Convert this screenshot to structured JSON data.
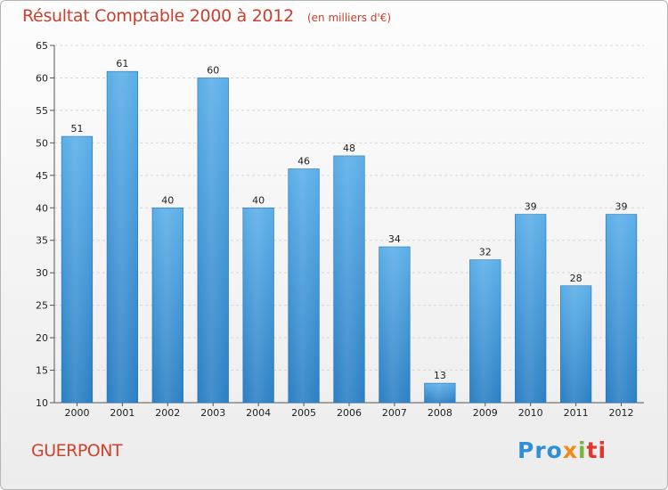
{
  "header": {
    "title": "Résultat Comptable 2000 à 2012",
    "subtitle": "(en milliers d'€)"
  },
  "footer": {
    "town": "GUERPONT",
    "logo_parts": [
      "Pro",
      "x",
      "i",
      "ti"
    ]
  },
  "colors": {
    "accent": "#c8402f",
    "bar_top": "#5aaee8",
    "bar_bottom": "#2a7fc4"
  },
  "chart_data": {
    "type": "bar",
    "title": "Résultat Comptable 2000 à 2012",
    "xlabel": "",
    "ylabel": "",
    "ylim": [
      10,
      65
    ],
    "yticks": [
      10,
      15,
      20,
      25,
      30,
      35,
      40,
      45,
      50,
      55,
      60,
      65
    ],
    "grid": true,
    "categories": [
      "2000",
      "2001",
      "2002",
      "2003",
      "2004",
      "2005",
      "2006",
      "2007",
      "2008",
      "2009",
      "2010",
      "2011",
      "2012"
    ],
    "values": [
      51,
      61,
      40,
      60,
      40,
      46,
      48,
      34,
      13,
      32,
      39,
      28,
      39
    ]
  }
}
